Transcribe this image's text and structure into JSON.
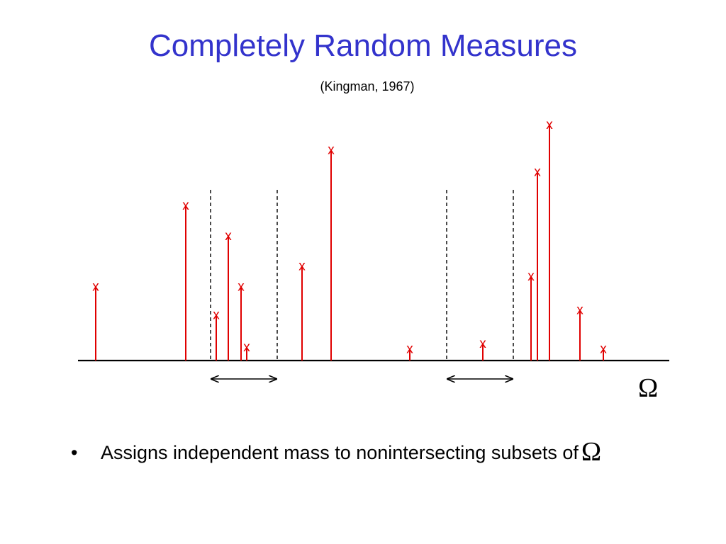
{
  "slide": {
    "title": "Completely Random Measures",
    "subtitle": "(Kingman, 1967)"
  },
  "diagram": {
    "space_symbol": "Ω",
    "atom_marker": "x",
    "colors": {
      "atom": "#e00000",
      "axis": "#000000",
      "title": "#3333cc"
    },
    "atoms": [
      {
        "id": 1,
        "mass": 0.44
      },
      {
        "id": 2,
        "mass": 0.92
      },
      {
        "id": 3,
        "mass": 0.27
      },
      {
        "id": 4,
        "mass": 0.74
      },
      {
        "id": 5,
        "mass": 0.44
      },
      {
        "id": 6,
        "mass": 0.08
      },
      {
        "id": 7,
        "mass": 0.56
      },
      {
        "id": 8,
        "mass": 1.25
      },
      {
        "id": 9,
        "mass": 0.07
      },
      {
        "id": 10,
        "mass": 0.1
      },
      {
        "id": 11,
        "mass": 0.5
      },
      {
        "id": 12,
        "mass": 1.12
      },
      {
        "id": 13,
        "mass": 1.4
      },
      {
        "id": 14,
        "mass": 0.3
      },
      {
        "id": 15,
        "mass": 0.07
      }
    ],
    "subsets": [
      {
        "id": "A"
      },
      {
        "id": "B"
      }
    ]
  },
  "bullets": [
    {
      "marker": "•",
      "text": "Assigns independent mass to nonintersecting subsets of",
      "symbol": "Ω"
    }
  ]
}
